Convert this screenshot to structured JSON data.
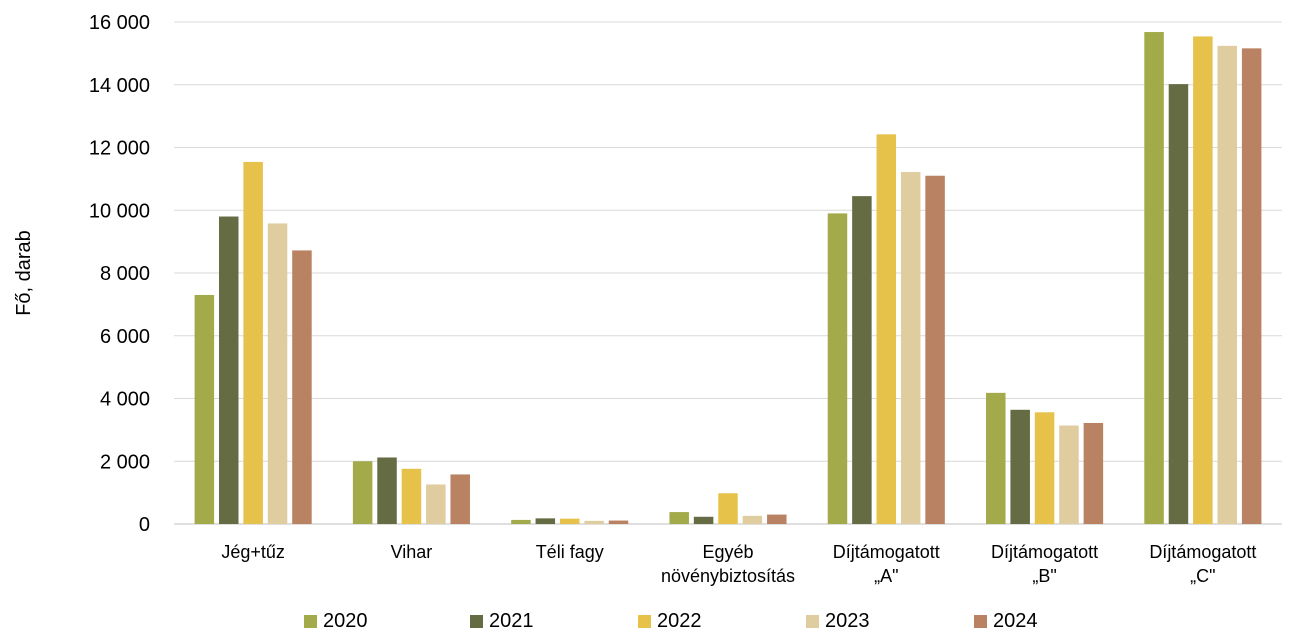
{
  "chart_data": {
    "type": "bar",
    "ylabel": "Fő, darab",
    "ylim": [
      0,
      16000
    ],
    "yticks": [
      "0",
      "2 000",
      "4 000",
      "6 000",
      "8 000",
      "10 000",
      "12 000",
      "14 000",
      "16 000"
    ],
    "ytick_values": [
      0,
      2000,
      4000,
      6000,
      8000,
      10000,
      12000,
      14000,
      16000
    ],
    "grid": true,
    "legend_position": "bottom",
    "categories": [
      [
        "Jég+tűz"
      ],
      [
        "Vihar"
      ],
      [
        "Téli fagy"
      ],
      [
        "Egyéb",
        "növénybiztosítás"
      ],
      [
        "Díjtámogatott",
        "„A\""
      ],
      [
        "Díjtámogatott",
        "„B\""
      ],
      [
        "Díjtámogatott",
        "„C\""
      ]
    ],
    "series": [
      {
        "name": "2020",
        "color": "#a3aa4a",
        "values": [
          7300,
          2000,
          130,
          380,
          9900,
          4180,
          15680
        ]
      },
      {
        "name": "2021",
        "color": "#656b42",
        "values": [
          9800,
          2120,
          180,
          230,
          10450,
          3640,
          14020
        ]
      },
      {
        "name": "2022",
        "color": "#e6c24a",
        "values": [
          11540,
          1760,
          170,
          980,
          12420,
          3560,
          15540
        ]
      },
      {
        "name": "2023",
        "color": "#dfcda0",
        "values": [
          9580,
          1260,
          100,
          260,
          11220,
          3140,
          15240
        ]
      },
      {
        "name": "2024",
        "color": "#b98262",
        "values": [
          8720,
          1580,
          110,
          300,
          11100,
          3220,
          15160
        ]
      }
    ]
  }
}
